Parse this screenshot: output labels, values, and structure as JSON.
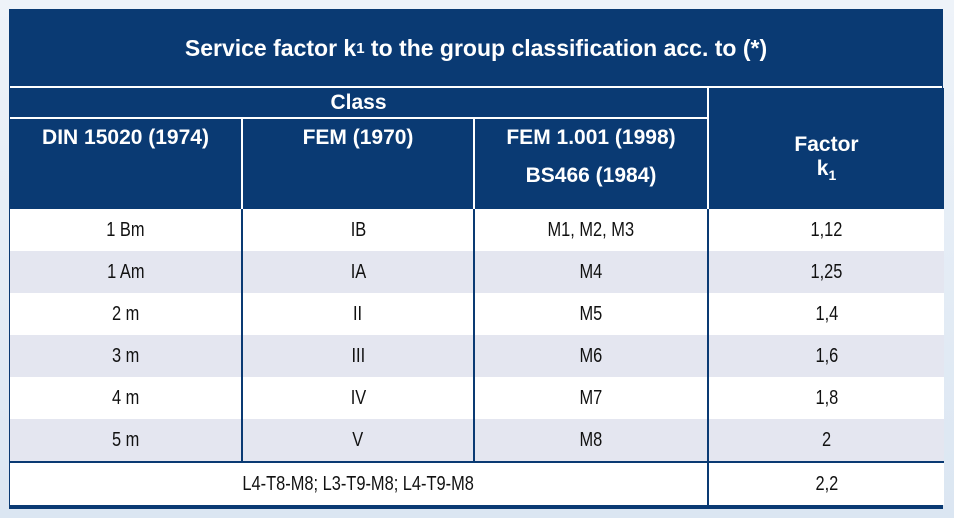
{
  "title_main": "Service factor k",
  "title_sub": "1",
  "title_rest": " to the group classification acc. to (*)",
  "header": {
    "class_label": "Class",
    "col1": "DIN 15020 (1974)",
    "col2": "FEM (1970)",
    "col3_line1": "FEM 1.001 (1998)",
    "col3_line2": "BS466 (1984)",
    "col4_line1": "Factor",
    "col4_k": "k",
    "col4_sub": "1"
  },
  "rows": [
    {
      "din": "1 Bm",
      "fem": "IB",
      "fem1001": "M1, M2, M3",
      "factor": "1,12"
    },
    {
      "din": "1 Am",
      "fem": "IA",
      "fem1001": "M4",
      "factor": "1,25"
    },
    {
      "din": "2 m",
      "fem": "II",
      "fem1001": "M5",
      "factor": "1,4"
    },
    {
      "din": "3 m",
      "fem": "III",
      "fem1001": "M6",
      "factor": "1,6"
    },
    {
      "din": "4 m",
      "fem": "IV",
      "fem1001": "M7",
      "factor": "1,8"
    },
    {
      "din": "5 m",
      "fem": "V",
      "fem1001": "M8",
      "factor": "2"
    }
  ],
  "footer": {
    "label": "L4-T8-M8; L3-T9-M8; L4-T9-M8",
    "factor": "2,2"
  }
}
